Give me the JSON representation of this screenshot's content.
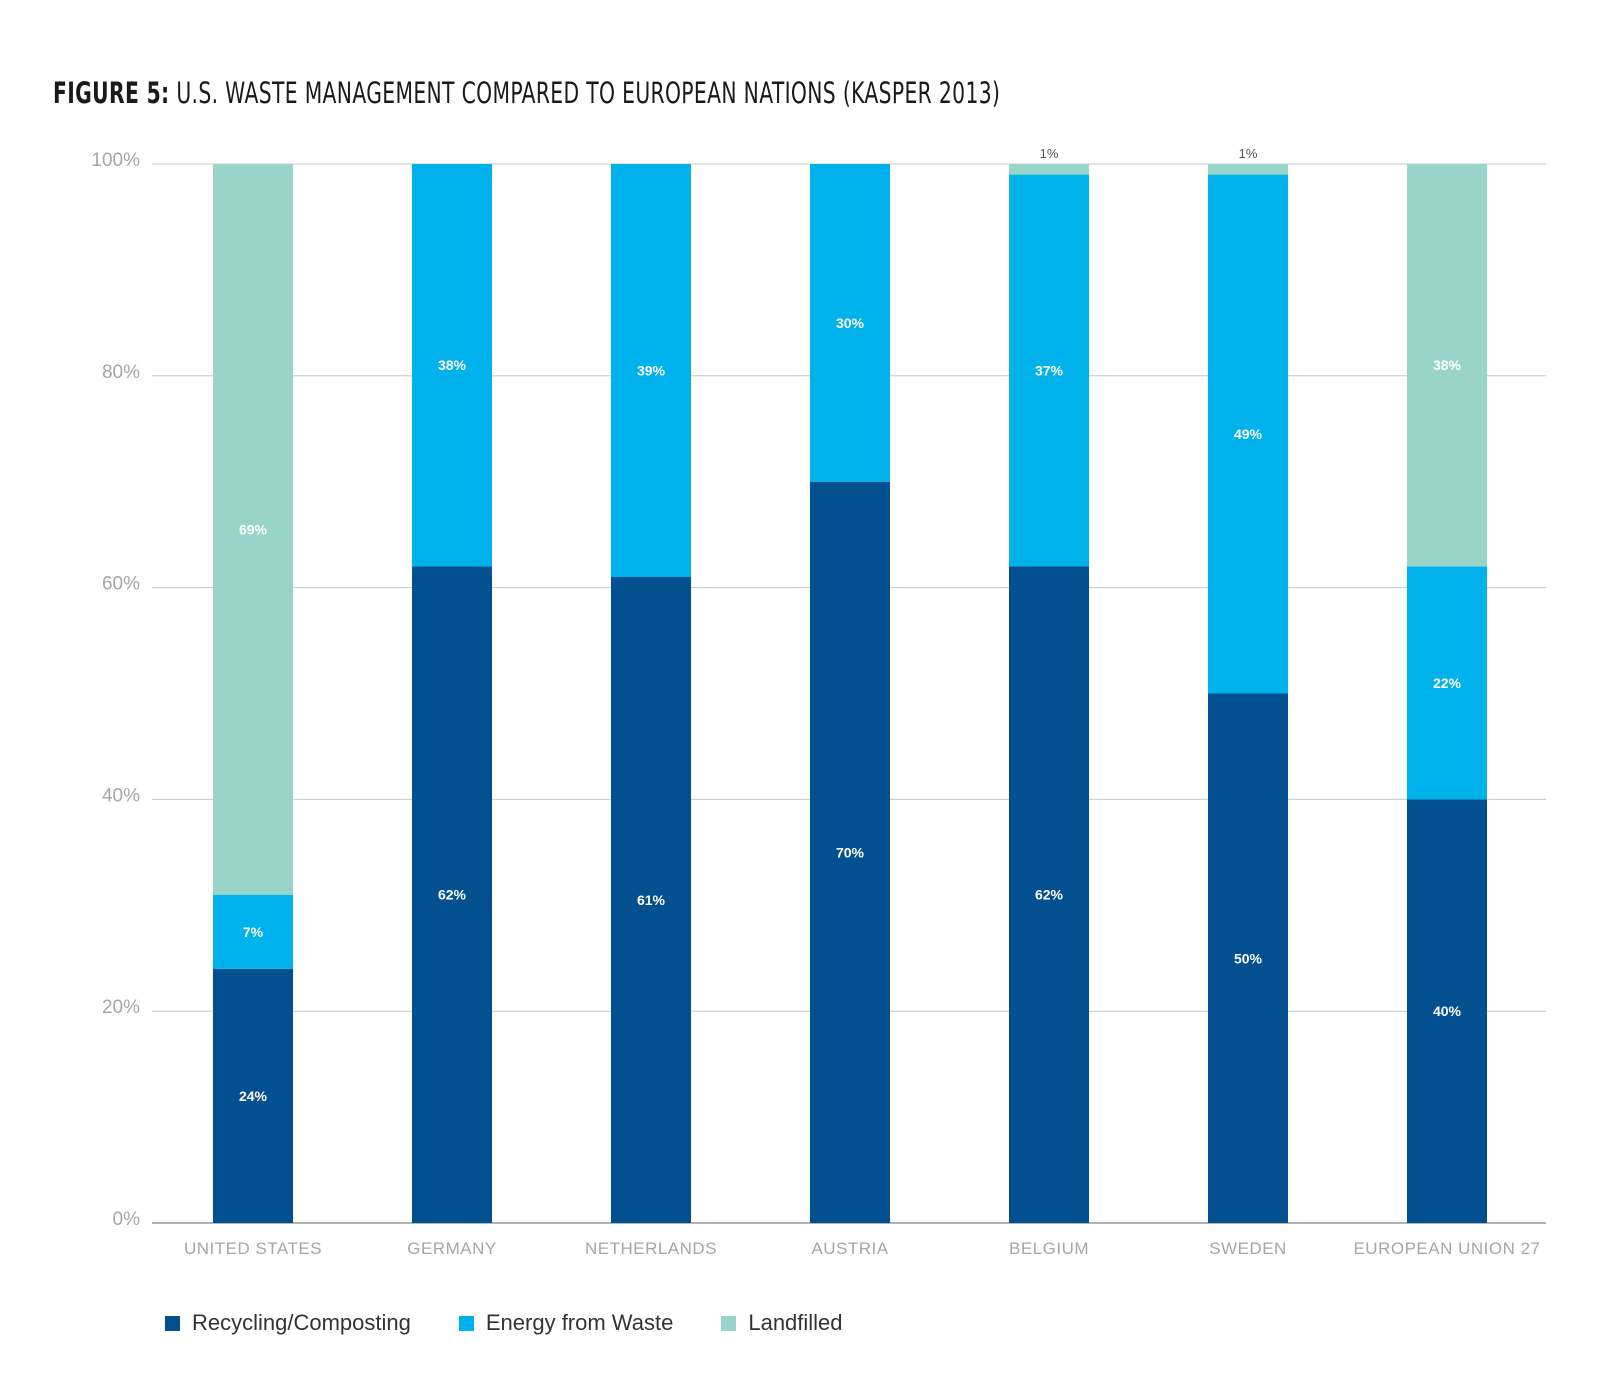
{
  "title": {
    "prefix": "FIGURE 5:",
    "text": "U.S. WASTE MANAGEMENT COMPARED TO EUROPEAN NATIONS (KASPER 2013)"
  },
  "legend": {
    "placement": "bottom-left",
    "items": [
      {
        "label": "Recycling/Composting",
        "color": "#02508f"
      },
      {
        "label": "Energy from Waste",
        "color": "#00b2eb"
      },
      {
        "label": "Landfilled",
        "color": "#98d5c8"
      }
    ]
  },
  "chart_data": {
    "type": "bar",
    "stacked": true,
    "categories": [
      "UNITED STATES",
      "GERMANY",
      "NETHERLANDS",
      "AUSTRIA",
      "BELGIUM",
      "SWEDEN",
      "EUROPEAN UNION 27"
    ],
    "series": [
      {
        "name": "Recycling/Composting",
        "color": "#02508f",
        "values": [
          24,
          62,
          61,
          70,
          62,
          50,
          40
        ],
        "labels": [
          "24%",
          "62%",
          "61%",
          "70%",
          "62%",
          "50%",
          "40%"
        ]
      },
      {
        "name": "Energy from Waste",
        "color": "#00b2eb",
        "values": [
          7,
          38,
          39,
          30,
          37,
          49,
          22
        ],
        "labels": [
          "7%",
          "38%",
          "39%",
          "30%",
          "37%",
          "49%",
          "22%"
        ]
      },
      {
        "name": "Landfilled",
        "color": "#98d5c8",
        "values": [
          69,
          0,
          0,
          0,
          1,
          1,
          38
        ],
        "labels": [
          "69%",
          "",
          "",
          "",
          "1%",
          "1%",
          "38%"
        ]
      }
    ],
    "y_ticks": [
      "0%",
      "20%",
      "40%",
      "60%",
      "80%",
      "100%"
    ],
    "ylim": [
      0,
      100
    ],
    "grid": true
  }
}
